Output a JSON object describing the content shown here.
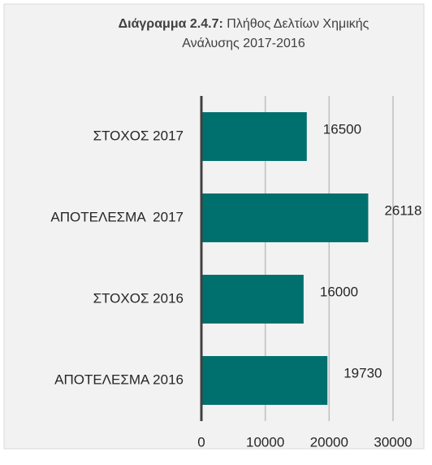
{
  "chart_data": {
    "type": "barh",
    "title_label": "Διάγραμμα 2.4.7:",
    "title": "Πλήθος Δελτίων Χημικής Ανάλυσης 2017-2016",
    "categories": [
      "ΣΤΟΧΟΣ 2017",
      "ΑΠΟΤΕΛΕΣΜΑ  2017",
      "ΣΤΟΧΟΣ 2016",
      "ΑΠΟΤΕΛΕΣΜΑ 2016"
    ],
    "values": [
      16500,
      26118,
      16000,
      19730
    ],
    "color": "#00706e",
    "xlim": [
      0,
      30000
    ],
    "xticks": [
      0,
      10000,
      20000,
      30000
    ],
    "grid": true
  }
}
